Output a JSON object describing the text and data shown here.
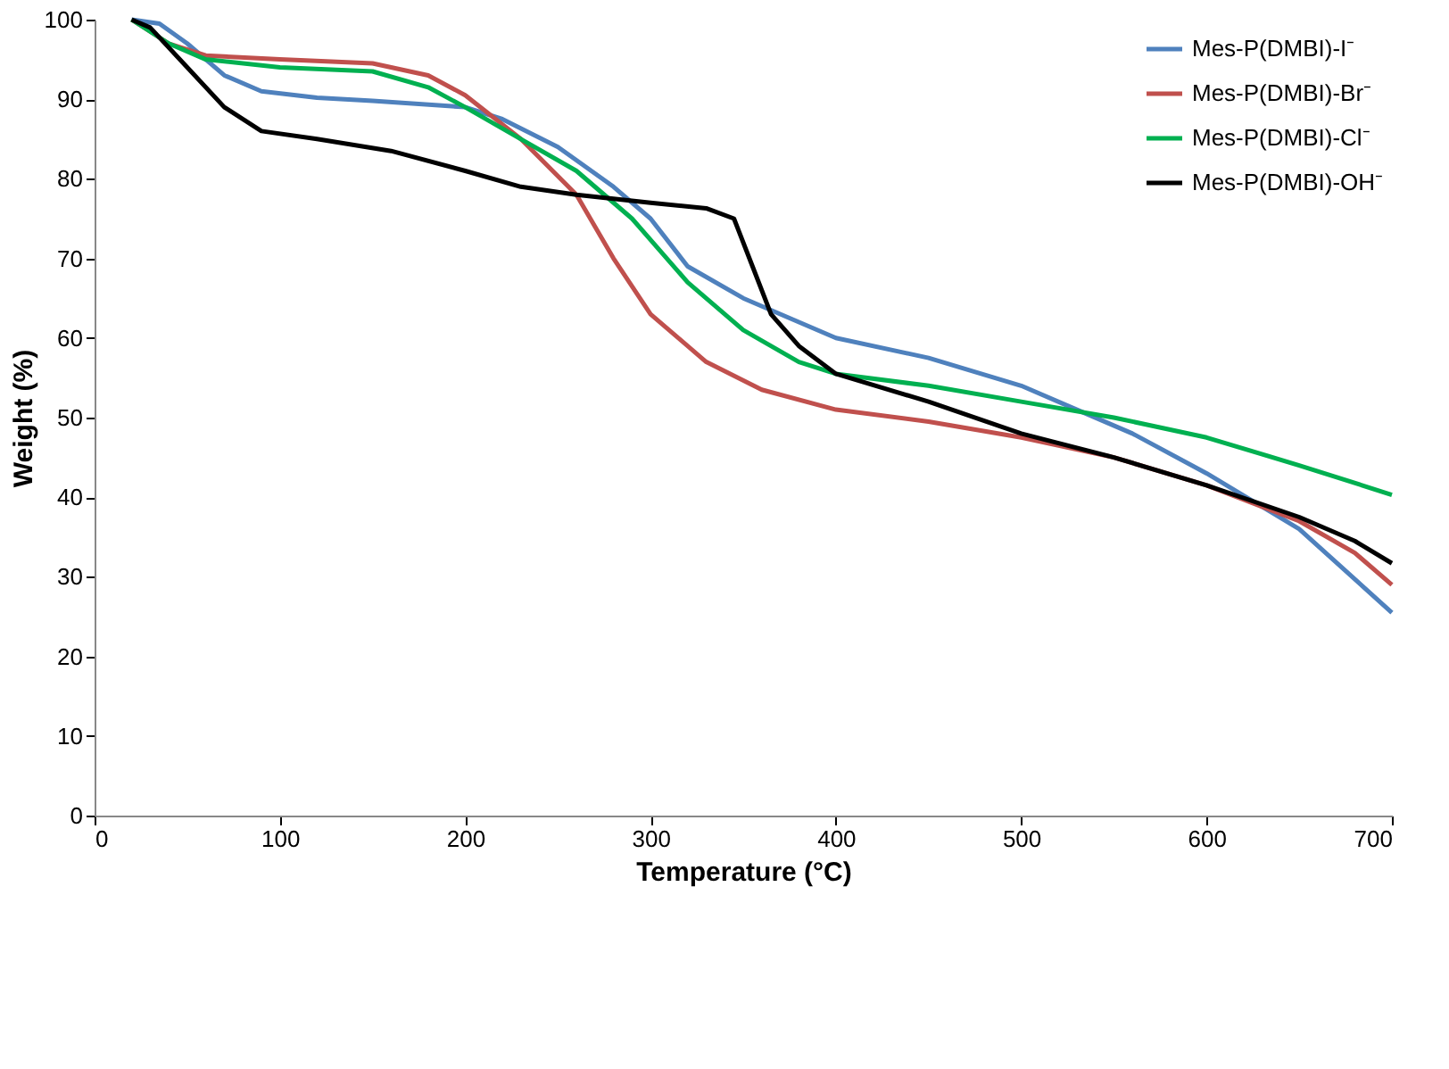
{
  "chart_data": {
    "type": "line",
    "xlabel": "Temperature (°C)",
    "ylabel": "Weight (%)",
    "xlim": [
      0,
      700
    ],
    "xticks": [
      0,
      100,
      200,
      300,
      400,
      500,
      600,
      700
    ],
    "ylim": [
      0,
      100
    ],
    "yticks": [
      0,
      10,
      20,
      30,
      40,
      50,
      60,
      70,
      80,
      90,
      100
    ],
    "grid": false,
    "legend": "top right",
    "line_style": "solid",
    "marker": "none",
    "series": [
      {
        "name": "Mes-P(DMBI)-I⁻",
        "color": "#4f81bd",
        "x": [
          20,
          35,
          50,
          70,
          90,
          120,
          150,
          200,
          220,
          250,
          280,
          300,
          320,
          350,
          400,
          450,
          500,
          530,
          560,
          600,
          650,
          700
        ],
        "values": [
          100,
          99.5,
          97,
          93,
          91,
          90.2,
          89.8,
          89,
          87.5,
          84,
          79,
          75,
          69,
          65,
          60,
          57.5,
          54,
          51,
          48,
          43,
          36,
          25.5
        ]
      },
      {
        "name": "Mes-P(DMBI)-Br⁻",
        "color": "#c0504d",
        "x": [
          20,
          40,
          60,
          100,
          150,
          180,
          200,
          230,
          260,
          280,
          300,
          330,
          360,
          400,
          450,
          500,
          550,
          600,
          650,
          680,
          700
        ],
        "values": [
          100,
          97,
          95.5,
          95,
          94.5,
          93,
          90.5,
          85,
          78,
          70,
          63,
          57,
          53.5,
          51,
          49.5,
          47.5,
          45,
          41.5,
          37,
          33,
          29
        ]
      },
      {
        "name": "Mes-P(DMBI)-Cl⁻",
        "color": "#00b050",
        "x": [
          20,
          40,
          60,
          100,
          150,
          180,
          200,
          230,
          260,
          290,
          320,
          350,
          380,
          400,
          450,
          500,
          550,
          600,
          650,
          700
        ],
        "values": [
          100,
          97,
          95,
          94,
          93.5,
          91.5,
          89,
          85,
          81,
          75,
          67,
          61,
          57,
          55.5,
          54,
          52,
          50,
          47.5,
          44,
          40.3
        ]
      },
      {
        "name": "Mes-P(DMBI)-OH⁻",
        "color": "#000000",
        "x": [
          20,
          30,
          50,
          70,
          90,
          120,
          160,
          200,
          230,
          260,
          300,
          330,
          345,
          355,
          365,
          380,
          400,
          450,
          500,
          550,
          600,
          650,
          680,
          700
        ],
        "values": [
          100,
          99,
          94,
          89,
          86,
          85,
          83.5,
          81,
          79,
          78,
          77,
          76.3,
          75,
          69,
          63,
          59,
          55.5,
          52,
          48,
          45,
          41.5,
          37.5,
          34.5,
          31.7
        ]
      }
    ]
  }
}
